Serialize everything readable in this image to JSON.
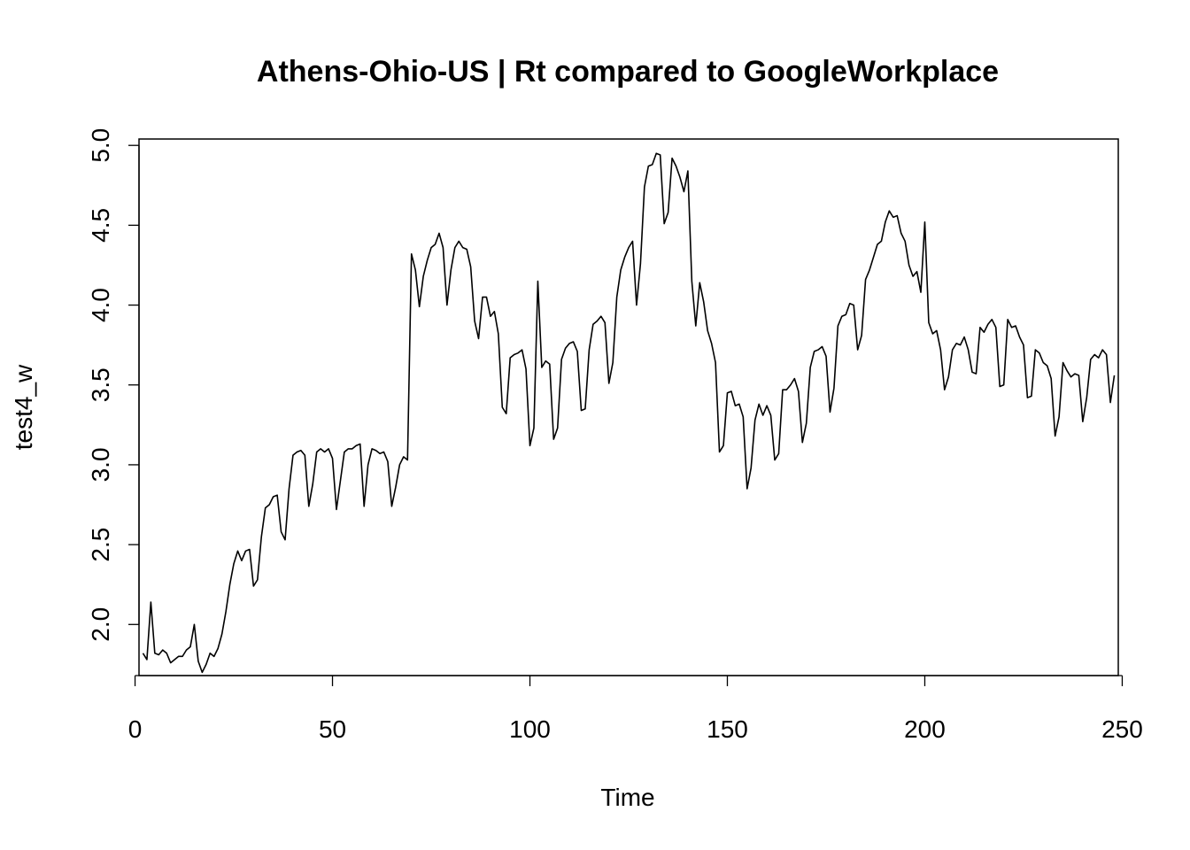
{
  "chart_data": {
    "type": "line",
    "title": "Athens-Ohio-US | Rt compared to GoogleWorkplace",
    "xlabel": "Time",
    "ylabel": "test4_w",
    "xlim": [
      1,
      249
    ],
    "ylim": [
      1.68,
      5.04
    ],
    "x_ticks": [
      0,
      50,
      100,
      150,
      200,
      250
    ],
    "y_ticks": [
      2.0,
      2.5,
      3.0,
      3.5,
      4.0,
      4.5,
      5.0
    ],
    "x_tick_labels": [
      "0",
      "50",
      "100",
      "150",
      "200",
      "250"
    ],
    "y_tick_labels": [
      "2.0",
      "2.5",
      "3.0",
      "3.5",
      "4.0",
      "4.5",
      "5.0"
    ],
    "grid": false,
    "legend": false,
    "x_start": 2,
    "series": [
      {
        "color": "#000000",
        "values": [
          1.82,
          1.78,
          2.14,
          1.82,
          1.81,
          1.84,
          1.82,
          1.76,
          1.78,
          1.8,
          1.8,
          1.84,
          1.86,
          2.0,
          1.77,
          1.7,
          1.75,
          1.82,
          1.8,
          1.85,
          1.94,
          2.08,
          2.25,
          2.38,
          2.46,
          2.4,
          2.46,
          2.47,
          2.24,
          2.28,
          2.55,
          2.73,
          2.75,
          2.8,
          2.81,
          2.58,
          2.53,
          2.85,
          3.06,
          3.08,
          3.09,
          3.06,
          2.74,
          2.88,
          3.08,
          3.1,
          3.08,
          3.1,
          3.04,
          2.72,
          2.9,
          3.08,
          3.1,
          3.1,
          3.12,
          3.13,
          2.74,
          3.0,
          3.1,
          3.09,
          3.07,
          3.08,
          3.02,
          2.74,
          2.86,
          3.0,
          3.05,
          3.03,
          4.32,
          4.22,
          3.99,
          4.18,
          4.28,
          4.36,
          4.38,
          4.45,
          4.36,
          4.0,
          4.22,
          4.36,
          4.4,
          4.36,
          4.35,
          4.24,
          3.9,
          3.79,
          4.05,
          4.05,
          3.93,
          3.96,
          3.82,
          3.36,
          3.32,
          3.67,
          3.69,
          3.7,
          3.72,
          3.6,
          3.12,
          3.23,
          4.15,
          3.61,
          3.65,
          3.63,
          3.16,
          3.23,
          3.66,
          3.73,
          3.76,
          3.77,
          3.71,
          3.34,
          3.35,
          3.72,
          3.88,
          3.9,
          3.93,
          3.89,
          3.51,
          3.64,
          4.05,
          4.22,
          4.3,
          4.36,
          4.4,
          4.0,
          4.26,
          4.74,
          4.87,
          4.88,
          4.95,
          4.94,
          4.51,
          4.58,
          4.92,
          4.87,
          4.8,
          4.71,
          4.84,
          4.15,
          3.87,
          4.14,
          4.02,
          3.84,
          3.76,
          3.64,
          3.08,
          3.12,
          3.45,
          3.46,
          3.37,
          3.38,
          3.3,
          2.85,
          2.98,
          3.28,
          3.38,
          3.31,
          3.37,
          3.31,
          3.03,
          3.07,
          3.47,
          3.47,
          3.5,
          3.54,
          3.46,
          3.14,
          3.26,
          3.61,
          3.71,
          3.72,
          3.74,
          3.68,
          3.33,
          3.48,
          3.87,
          3.93,
          3.94,
          4.01,
          4.0,
          3.72,
          3.81,
          4.16,
          4.22,
          4.3,
          4.38,
          4.4,
          4.52,
          4.59,
          4.55,
          4.56,
          4.45,
          4.4,
          4.25,
          4.18,
          4.21,
          4.08,
          4.52,
          3.89,
          3.82,
          3.84,
          3.72,
          3.47,
          3.55,
          3.72,
          3.76,
          3.75,
          3.8,
          3.72,
          3.58,
          3.57,
          3.86,
          3.83,
          3.88,
          3.91,
          3.86,
          3.49,
          3.5,
          3.91,
          3.86,
          3.87,
          3.8,
          3.75,
          3.42,
          3.43,
          3.72,
          3.7,
          3.64,
          3.62,
          3.54,
          3.18,
          3.3,
          3.64,
          3.59,
          3.55,
          3.57,
          3.56,
          3.27,
          3.42,
          3.66,
          3.69,
          3.67,
          3.72,
          3.69,
          3.39,
          3.56
        ]
      }
    ]
  }
}
